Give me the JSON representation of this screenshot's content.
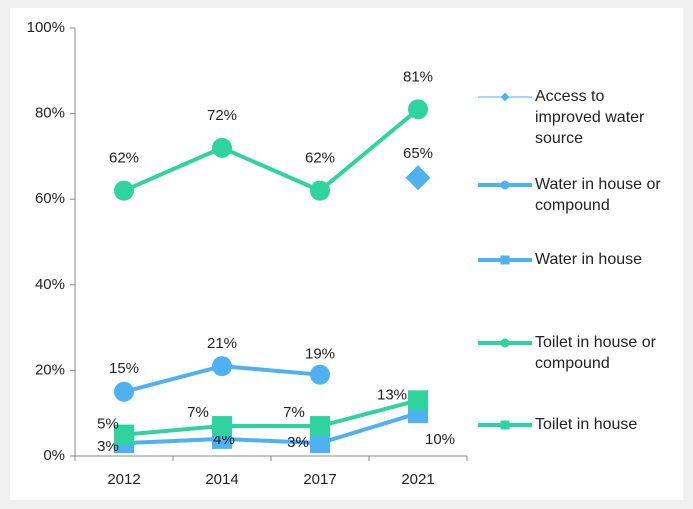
{
  "chart_data": {
    "type": "line",
    "categories": [
      "2012",
      "2014",
      "2017",
      "2021"
    ],
    "ylim": [
      0,
      100
    ],
    "yticks": [
      {
        "value": 0,
        "label": "0%"
      },
      {
        "value": 20,
        "label": "20%"
      },
      {
        "value": 40,
        "label": "40%"
      },
      {
        "value": 60,
        "label": "60%"
      },
      {
        "value": 80,
        "label": "80%"
      },
      {
        "value": 100,
        "label": "100%"
      }
    ],
    "grid": false,
    "legend": "right",
    "series": [
      {
        "name": "Access to improved water source",
        "color": "#4fb0f2",
        "marker": "diamond",
        "line_width": 1,
        "values": [
          null,
          null,
          null,
          65
        ],
        "value_labels": [
          null,
          null,
          null,
          "65%"
        ]
      },
      {
        "name": "Water in house or compound",
        "color": "#4fb0f2",
        "marker": "circle",
        "line_width": 4,
        "values": [
          15,
          21,
          19,
          null
        ],
        "value_labels": [
          "15%",
          "21%",
          "19%",
          null
        ]
      },
      {
        "name": "Water in house",
        "color": "#4fb0f2",
        "marker": "square",
        "line_width": 4,
        "values": [
          3,
          4,
          3,
          10
        ],
        "value_labels": [
          "3%",
          "4%",
          "3%",
          "10%"
        ]
      },
      {
        "name": "Toilet in house or compound",
        "color": "#2fd39d",
        "marker": "circle",
        "line_width": 4,
        "values": [
          62,
          72,
          62,
          81
        ],
        "value_labels": [
          "62%",
          "72%",
          "62%",
          "81%"
        ]
      },
      {
        "name": "Toilet in house",
        "color": "#2fd39d",
        "marker": "square",
        "line_width": 4,
        "values": [
          5,
          7,
          7,
          13
        ],
        "value_labels": [
          "5%",
          "7%",
          "7%",
          "13%"
        ]
      }
    ]
  }
}
